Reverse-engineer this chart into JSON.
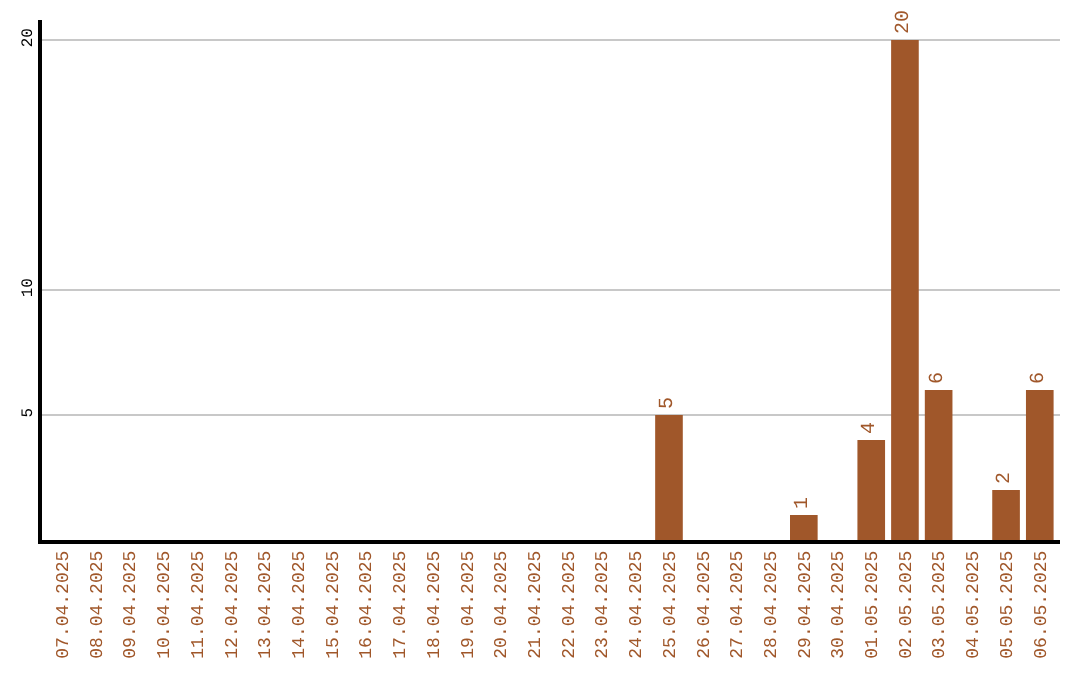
{
  "chart_data": {
    "type": "bar",
    "categories": [
      "07.04.2025",
      "08.04.2025",
      "09.04.2025",
      "10.04.2025",
      "11.04.2025",
      "12.04.2025",
      "13.04.2025",
      "14.04.2025",
      "15.04.2025",
      "16.04.2025",
      "17.04.2025",
      "18.04.2025",
      "19.04.2025",
      "20.04.2025",
      "21.04.2025",
      "22.04.2025",
      "23.04.2025",
      "24.04.2025",
      "25.04.2025",
      "26.04.2025",
      "27.04.2025",
      "28.04.2025",
      "29.04.2025",
      "30.04.2025",
      "01.05.2025",
      "02.05.2025",
      "03.05.2025",
      "04.05.2025",
      "05.05.2025",
      "06.05.2025"
    ],
    "values": [
      0,
      0,
      0,
      0,
      0,
      0,
      0,
      0,
      0,
      0,
      0,
      0,
      0,
      0,
      0,
      0,
      0,
      0,
      5,
      0,
      0,
      0,
      1,
      0,
      4,
      20,
      6,
      0,
      2,
      6
    ],
    "value_labels": [
      null,
      null,
      null,
      null,
      null,
      null,
      null,
      null,
      null,
      null,
      null,
      null,
      null,
      null,
      null,
      null,
      null,
      null,
      "5",
      null,
      null,
      null,
      "1",
      null,
      "4",
      "20",
      "6",
      null,
      "2",
      "6"
    ],
    "color": "#a0572a",
    "ylim": [
      0,
      20.8
    ],
    "yticks": [
      5,
      10,
      20
    ],
    "grid": "y",
    "legend": false
  }
}
